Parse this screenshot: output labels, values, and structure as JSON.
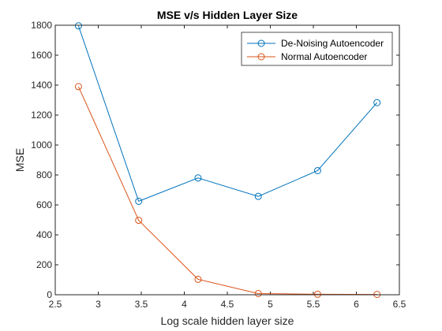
{
  "chart_data": {
    "type": "line",
    "title": "MSE v/s Hidden Layer Size",
    "xlabel": "Log scale hidden layer size",
    "ylabel": "MSE",
    "xlim": [
      2.5,
      6.5
    ],
    "ylim": [
      0,
      1800
    ],
    "xticks": [
      2.5,
      3,
      3.5,
      4,
      4.5,
      5,
      5.5,
      6,
      6.5
    ],
    "yticks": [
      0,
      200,
      400,
      600,
      800,
      1000,
      1200,
      1400,
      1600,
      1800
    ],
    "x": [
      2.77,
      3.47,
      4.16,
      4.86,
      5.55,
      6.24
    ],
    "series": [
      {
        "name": "De-Noising Autoencoder",
        "color": "#0072BD",
        "values": [
          1796,
          624,
          780,
          657,
          829,
          1283
        ]
      },
      {
        "name": "Normal Autoencoder",
        "color": "#D95319",
        "values": [
          1390,
          497,
          103,
          8,
          3,
          2
        ]
      }
    ],
    "marker": "circle",
    "grid": false,
    "legend_position": "top-right"
  }
}
